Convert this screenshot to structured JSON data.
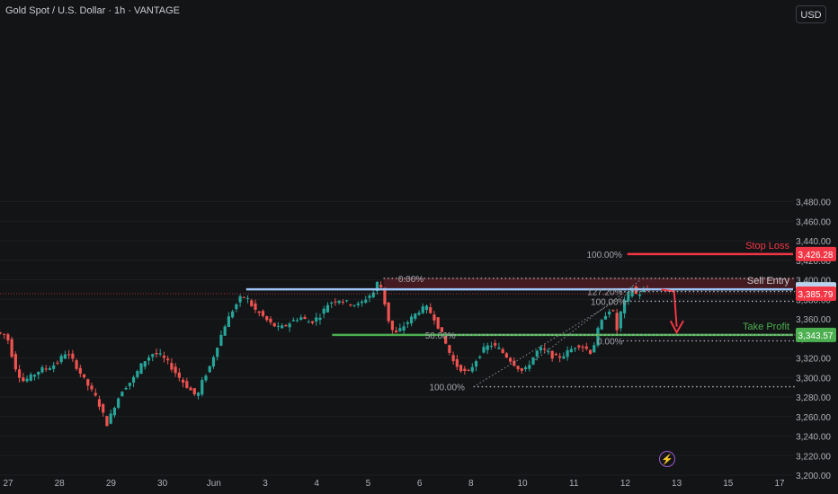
{
  "header": {
    "title": "Gold Spot / U.S. Dollar · 1h · VANTAGE",
    "currency_button": "USD",
    "bolt_icon": "lightning-bolt-icon"
  },
  "colors": {
    "background": "#131416",
    "up": "#26a69a",
    "down": "#ef5350",
    "stop_loss": "#f23645",
    "take_profit": "#4caf50",
    "entry": "#9ec4f5",
    "fib": "#b2b5be"
  },
  "chart_data": {
    "type": "candlestick",
    "title": "Gold Spot / U.S. Dollar · 1h · VANTAGE",
    "y_unit": "USD",
    "ylim": [
      3195,
      3500
    ],
    "y_ticks": [
      3200,
      3220,
      3240,
      3260,
      3280,
      3300,
      3320,
      3340,
      3360,
      3380,
      3400,
      3420,
      3440,
      3460,
      3480
    ],
    "y_tick_labels": [
      "3,200.00",
      "3,220.00",
      "3,240.00",
      "3,260.00",
      "3,280.00",
      "3,300.00",
      "3,320.00",
      "3,340.00",
      "3,360.00",
      "3,380.00",
      "3,400.00",
      "3,420.00",
      "3,440.00",
      "3,460.00",
      "3,480.00"
    ],
    "x_labels": [
      "27",
      "28",
      "29",
      "30",
      "Jun",
      "3",
      "4",
      "5",
      "6",
      "8",
      "10",
      "11",
      "12",
      "13",
      "15",
      "17"
    ],
    "x_days": [
      0,
      1,
      2,
      3,
      4,
      5,
      6,
      7,
      8,
      9,
      10,
      11,
      12,
      13,
      14,
      15
    ],
    "price_path": [
      [
        -0.15,
        3346
      ],
      [
        0.05,
        3343
      ],
      [
        0.2,
        3312
      ],
      [
        0.35,
        3296
      ],
      [
        0.5,
        3300
      ],
      [
        0.7,
        3308
      ],
      [
        0.85,
        3310
      ],
      [
        1.0,
        3314
      ],
      [
        1.2,
        3326
      ],
      [
        1.35,
        3316
      ],
      [
        1.55,
        3298
      ],
      [
        1.8,
        3278
      ],
      [
        2.0,
        3252
      ],
      [
        2.15,
        3272
      ],
      [
        2.3,
        3288
      ],
      [
        2.5,
        3298
      ],
      [
        2.7,
        3316
      ],
      [
        2.9,
        3325
      ],
      [
        3.05,
        3322
      ],
      [
        3.2,
        3314
      ],
      [
        3.4,
        3300
      ],
      [
        3.6,
        3288
      ],
      [
        3.75,
        3280
      ],
      [
        3.85,
        3296
      ],
      [
        4.0,
        3312
      ],
      [
        4.15,
        3334
      ],
      [
        4.3,
        3355
      ],
      [
        4.45,
        3370
      ],
      [
        4.6,
        3382
      ],
      [
        4.7,
        3383
      ],
      [
        4.85,
        3370
      ],
      [
        5.0,
        3364
      ],
      [
        5.15,
        3356
      ],
      [
        5.35,
        3350
      ],
      [
        5.55,
        3356
      ],
      [
        5.75,
        3362
      ],
      [
        5.95,
        3356
      ],
      [
        6.15,
        3364
      ],
      [
        6.3,
        3376
      ],
      [
        6.5,
        3380
      ],
      [
        6.7,
        3376
      ],
      [
        6.9,
        3374
      ],
      [
        7.05,
        3382
      ],
      [
        7.2,
        3388
      ],
      [
        7.28,
        3402
      ],
      [
        7.38,
        3380
      ],
      [
        7.5,
        3352
      ],
      [
        7.6,
        3344
      ],
      [
        7.75,
        3352
      ],
      [
        7.9,
        3360
      ],
      [
        8.05,
        3368
      ],
      [
        8.2,
        3372
      ],
      [
        8.35,
        3362
      ],
      [
        8.5,
        3345
      ],
      [
        8.6,
        3332
      ],
      [
        8.75,
        3314
      ],
      [
        8.9,
        3308
      ],
      [
        9.0,
        3303
      ],
      [
        9.15,
        3316
      ],
      [
        9.3,
        3328
      ],
      [
        9.45,
        3334
      ],
      [
        9.6,
        3330
      ],
      [
        9.8,
        3320
      ],
      [
        9.95,
        3312
      ],
      [
        10.1,
        3305
      ],
      [
        10.25,
        3318
      ],
      [
        10.4,
        3330
      ],
      [
        10.55,
        3326
      ],
      [
        10.7,
        3320
      ],
      [
        10.85,
        3322
      ],
      [
        11.0,
        3328
      ],
      [
        11.15,
        3334
      ],
      [
        11.3,
        3330
      ],
      [
        11.42,
        3325
      ],
      [
        11.55,
        3350
      ],
      [
        11.7,
        3366
      ],
      [
        11.82,
        3372
      ],
      [
        11.9,
        3346
      ],
      [
        12.0,
        3370
      ],
      [
        12.1,
        3382
      ],
      [
        12.2,
        3392
      ],
      [
        12.3,
        3384
      ],
      [
        12.4,
        3388
      ],
      [
        12.5,
        3390
      ]
    ],
    "sell_entry": {
      "price": 3390.28,
      "label": "Sell Entry",
      "tag": "3,390.28"
    },
    "stop_loss": {
      "price": 3426.28,
      "label": "Stop Loss",
      "tag": "3,426.28"
    },
    "take_profit": {
      "price": 3343.57,
      "label": "Take Profit",
      "tag": "3,343.57"
    },
    "current_price": {
      "price": 3385.79,
      "tag": "3,385.79"
    },
    "resistance_zone": {
      "from_day": 7.3,
      "to_day": 15.3,
      "low": 3390.3,
      "high": 3402
    },
    "fib_levels": [
      {
        "label": "0.00%",
        "price": 3401.5
      },
      {
        "label": "127.20%",
        "price": 3388
      },
      {
        "label": "100.00%",
        "price": 3378
      },
      {
        "label": "50.00%",
        "price": 3343.6
      },
      {
        "label": "0.00%",
        "price": 3337.5
      },
      {
        "label": "100.00%",
        "price": 3290.5
      },
      {
        "label": "100.00%",
        "price": 3426.28
      }
    ]
  }
}
